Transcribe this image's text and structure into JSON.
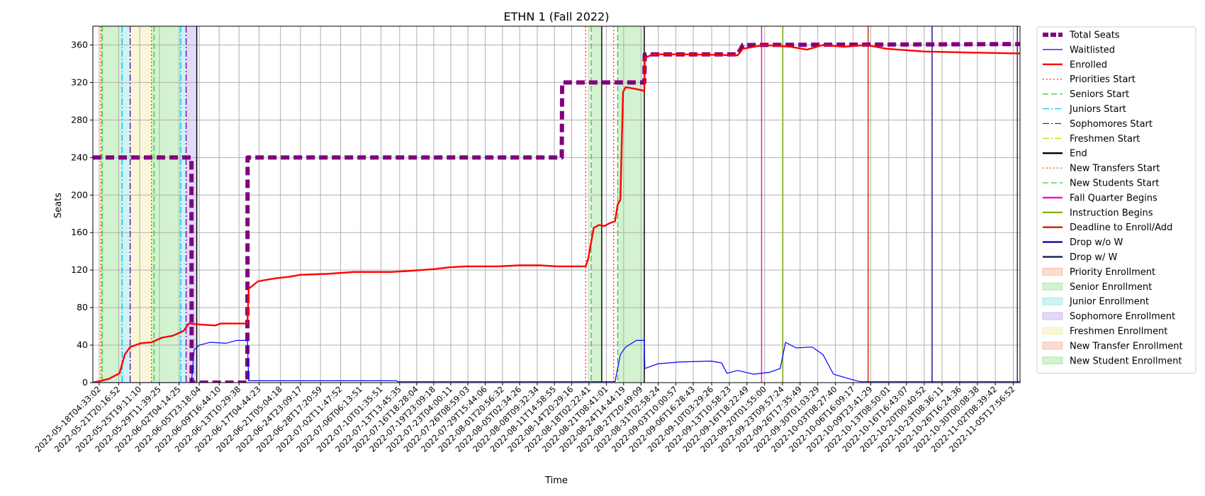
{
  "chart_data": {
    "type": "line",
    "title": "ETHN 1 (Fall 2022)",
    "xlabel": "Time",
    "ylabel": "Seats",
    "x_range": [
      "2022-05-17T00:00:00",
      "2022-11-07T00:00:00"
    ],
    "ylim": [
      0,
      380
    ],
    "grid": true,
    "legend_position": "outside-right",
    "y_ticks": [
      0,
      40,
      80,
      120,
      160,
      200,
      240,
      280,
      320,
      360
    ],
    "x_tick_labels": [
      "2022-05-18T04:33:02",
      "2022-05-21T20:16:52",
      "2022-05-25T19:11:10",
      "2022-05-29T11:39:25",
      "2022-06-02T04:14:25",
      "2022-06-05T23:18:04",
      "2022-06-09T16:44:10",
      "2022-06-13T10:29:38",
      "2022-06-17T04:44:23",
      "2022-06-21T05:04:18",
      "2022-06-24T23:09:17",
      "2022-06-28T17:20:59",
      "2022-07-02T11:47:52",
      "2022-07-06T06:13:51",
      "2022-07-10T01:35:51",
      "2022-07-13T13:45:35",
      "2022-07-16T18:28:04",
      "2022-07-19T23:09:18",
      "2022-07-23T04:00:11",
      "2022-07-26T08:59:03",
      "2022-07-29T15:44:06",
      "2022-08-01T20:56:32",
      "2022-08-05T02:34:26",
      "2022-08-08T09:32:34",
      "2022-08-11T14:58:55",
      "2022-08-14T20:29:16",
      "2022-08-18T02:22:41",
      "2022-08-21T08:41:01",
      "2022-08-24T14:44:19",
      "2022-08-27T20:49:09",
      "2022-08-31T02:58:24",
      "2022-09-03T10:00:57",
      "2022-09-06T16:28:43",
      "2022-09-10T03:29:26",
      "2022-09-13T10:58:23",
      "2022-09-16T18:22:49",
      "2022-09-20T01:55:00",
      "2022-09-23T09:57:24",
      "2022-09-26T17:35:49",
      "2022-09-30T01:03:29",
      "2022-10-03T08:27:40",
      "2022-10-06T16:09:17",
      "2022-10-09T23:41:29",
      "2022-10-13T08:50:01",
      "2022-10-16T16:43:07",
      "2022-10-20T00:40:52",
      "2022-10-23T08:36:11",
      "2022-10-26T16:24:36",
      "2022-10-30T00:08:38",
      "2022-11-02T08:39:42",
      "2022-11-05T17:56:52"
    ],
    "series": [
      {
        "name": "Total Seats",
        "color": "#800080",
        "style": "dashed-thick",
        "points": [
          [
            "2022-05-17T00:00:00",
            240
          ],
          [
            "2022-06-04T12:00:00",
            240
          ],
          [
            "2022-06-04T13:00:00",
            0
          ],
          [
            "2022-06-15T00:00:00",
            0
          ],
          [
            "2022-06-15T01:00:00",
            240
          ],
          [
            "2022-08-13T00:00:00",
            240
          ],
          [
            "2022-08-13T02:00:00",
            320
          ],
          [
            "2022-08-28T12:00:00",
            320
          ],
          [
            "2022-08-28T14:00:00",
            350
          ],
          [
            "2022-09-15T00:00:00",
            350
          ],
          [
            "2022-09-16T00:00:00",
            360
          ],
          [
            "2022-11-07T00:00:00",
            361
          ]
        ]
      },
      {
        "name": "Waitlisted",
        "color": "#0000ff",
        "style": "solid-thin",
        "points": [
          [
            "2022-05-17T00:00:00",
            0
          ],
          [
            "2022-06-04T12:00:00",
            0
          ],
          [
            "2022-06-05T00:00:00",
            35
          ],
          [
            "2022-06-06T00:00:00",
            40
          ],
          [
            "2022-06-08T00:00:00",
            43
          ],
          [
            "2022-06-11T00:00:00",
            42
          ],
          [
            "2022-06-13T00:00:00",
            45
          ],
          [
            "2022-06-15T00:00:00",
            45
          ],
          [
            "2022-06-15T06:00:00",
            2
          ],
          [
            "2022-07-13T00:00:00",
            2
          ],
          [
            "2022-07-13T06:00:00",
            1
          ],
          [
            "2022-08-23T00:00:00",
            1
          ],
          [
            "2022-08-24T00:00:00",
            30
          ],
          [
            "2022-08-25T00:00:00",
            38
          ],
          [
            "2022-08-27T00:00:00",
            45
          ],
          [
            "2022-08-28T12:00:00",
            45
          ],
          [
            "2022-08-28T14:00:00",
            15
          ],
          [
            "2022-08-31T00:00:00",
            20
          ],
          [
            "2022-09-04T00:00:00",
            22
          ],
          [
            "2022-09-10T00:00:00",
            23
          ],
          [
            "2022-09-12T00:00:00",
            21
          ],
          [
            "2022-09-13T00:00:00",
            10
          ],
          [
            "2022-09-15T00:00:00",
            13
          ],
          [
            "2022-09-18T00:00:00",
            9
          ],
          [
            "2022-09-21T00:00:00",
            11
          ],
          [
            "2022-09-23T00:00:00",
            15
          ],
          [
            "2022-09-24T00:00:00",
            43
          ],
          [
            "2022-09-26T00:00:00",
            37
          ],
          [
            "2022-09-29T00:00:00",
            38
          ],
          [
            "2022-10-01T00:00:00",
            30
          ],
          [
            "2022-10-03T00:00:00",
            9
          ],
          [
            "2022-10-06T00:00:00",
            4
          ],
          [
            "2022-10-08T00:00:00",
            1
          ],
          [
            "2022-11-07T00:00:00",
            1
          ]
        ]
      },
      {
        "name": "Enrolled",
        "color": "#ff0000",
        "style": "solid",
        "points": [
          [
            "2022-05-17T00:00:00",
            0
          ],
          [
            "2022-05-18T12:00:00",
            2
          ],
          [
            "2022-05-20T00:00:00",
            4
          ],
          [
            "2022-05-22T00:00:00",
            10
          ],
          [
            "2022-05-23T00:00:00",
            30
          ],
          [
            "2022-05-24T00:00:00",
            38
          ],
          [
            "2022-05-26T00:00:00",
            42
          ],
          [
            "2022-05-28T00:00:00",
            43
          ],
          [
            "2022-05-30T00:00:00",
            48
          ],
          [
            "2022-06-01T00:00:00",
            50
          ],
          [
            "2022-06-03T00:00:00",
            55
          ],
          [
            "2022-06-04T00:00:00",
            63
          ],
          [
            "2022-06-06T00:00:00",
            62
          ],
          [
            "2022-06-09T00:00:00",
            61
          ],
          [
            "2022-06-10T00:00:00",
            63
          ],
          [
            "2022-06-15T00:00:00",
            63
          ],
          [
            "2022-06-15T06:00:00",
            100
          ],
          [
            "2022-06-17T00:00:00",
            108
          ],
          [
            "2022-06-20T00:00:00",
            111
          ],
          [
            "2022-06-23T00:00:00",
            113
          ],
          [
            "2022-06-25T00:00:00",
            115
          ],
          [
            "2022-06-30T00:00:00",
            116
          ],
          [
            "2022-07-05T00:00:00",
            118
          ],
          [
            "2022-07-12T00:00:00",
            118
          ],
          [
            "2022-07-15T00:00:00",
            119
          ],
          [
            "2022-07-20T00:00:00",
            121
          ],
          [
            "2022-07-23T00:00:00",
            123
          ],
          [
            "2022-07-26T00:00:00",
            124
          ],
          [
            "2022-08-01T00:00:00",
            124
          ],
          [
            "2022-08-05T00:00:00",
            125
          ],
          [
            "2022-08-09T00:00:00",
            125
          ],
          [
            "2022-08-12T00:00:00",
            124
          ],
          [
            "2022-08-17T12:00:00",
            124
          ],
          [
            "2022-08-18T00:00:00",
            133
          ],
          [
            "2022-08-19T00:00:00",
            165
          ],
          [
            "2022-08-20T00:00:00",
            168
          ],
          [
            "2022-08-21T00:00:00",
            167
          ],
          [
            "2022-08-22T00:00:00",
            170
          ],
          [
            "2022-08-23T00:00:00",
            172
          ],
          [
            "2022-08-23T12:00:00",
            190
          ],
          [
            "2022-08-24T00:00:00",
            195
          ],
          [
            "2022-08-24T12:00:00",
            310
          ],
          [
            "2022-08-25T00:00:00",
            315
          ],
          [
            "2022-08-27T00:00:00",
            313
          ],
          [
            "2022-08-28T12:00:00",
            311
          ],
          [
            "2022-08-28T14:00:00",
            346
          ],
          [
            "2022-08-30T00:00:00",
            350
          ],
          [
            "2022-09-05T00:00:00",
            350
          ],
          [
            "2022-09-15T00:00:00",
            349
          ],
          [
            "2022-09-16T00:00:00",
            356
          ],
          [
            "2022-09-20T00:00:00",
            360
          ],
          [
            "2022-09-25T00:00:00",
            358
          ],
          [
            "2022-09-28T00:00:00",
            355
          ],
          [
            "2022-10-01T00:00:00",
            360
          ],
          [
            "2022-10-05T00:00:00",
            358
          ],
          [
            "2022-10-09T00:00:00",
            360
          ],
          [
            "2022-10-13T00:00:00",
            356
          ],
          [
            "2022-10-20T00:00:00",
            353
          ],
          [
            "2022-10-28T00:00:00",
            352
          ],
          [
            "2022-11-07T00:00:00",
            351
          ]
        ]
      }
    ],
    "event_lines": [
      {
        "name": "Priorities Start",
        "color": "#ff4500",
        "style": "dotted",
        "dates": [
          "2022-05-18T12:00:00",
          "2022-08-17T12:00:00"
        ]
      },
      {
        "name": "Seniors Start",
        "color": "#32cd32",
        "style": "dashed",
        "dates": [
          "2022-05-18T18:00:00",
          "2022-08-18T12:00:00"
        ]
      },
      {
        "name": "Juniors Start",
        "color": "#00bfff",
        "style": "dashdot",
        "dates": [
          "2022-05-22T12:00:00",
          "2022-06-02T12:00:00"
        ]
      },
      {
        "name": "Sophomores Start",
        "color": "#6a0dad",
        "style": "dashdot",
        "dates": [
          "2022-05-24T00:00:00",
          "2022-06-03T12:00:00"
        ]
      },
      {
        "name": "Freshmen Start",
        "color": "#d4d400",
        "style": "dashdot",
        "dates": []
      },
      {
        "name": "End",
        "color": "#000000",
        "style": "solid",
        "dates": [
          "2022-06-05T12:00:00",
          "2022-08-20T12:00:00",
          "2022-08-28T12:00:00"
        ]
      },
      {
        "name": "New Transfers Start",
        "color": "#ff4500",
        "style": "dotted",
        "dates": [
          "2022-05-28T00:00:00",
          "2022-08-22T18:00:00"
        ]
      },
      {
        "name": "New Students Start",
        "color": "#32cd32",
        "style": "dashed",
        "dates": [
          "2022-05-28T12:00:00",
          "2022-08-23T12:00:00"
        ]
      },
      {
        "name": "Fall Quarter Begins",
        "color": "#ff00c8",
        "style": "solid",
        "dates": [
          "2022-09-19T12:00:00"
        ]
      },
      {
        "name": "Instruction Begins",
        "color": "#7fb800",
        "style": "solid",
        "dates": [
          "2022-09-23T12:00:00"
        ]
      },
      {
        "name": "Deadline to Enroll/Add",
        "color": "#cc2200",
        "style": "solid",
        "dates": [
          "2022-10-09T12:00:00"
        ]
      },
      {
        "name": "Drop w/o W",
        "color": "#1a0099",
        "style": "solid",
        "dates": [
          "2022-10-21T12:00:00"
        ]
      },
      {
        "name": "Drop w/ W",
        "color": "#1a2855",
        "style": "solid",
        "dates": [
          "2022-11-06T12:00:00"
        ]
      }
    ],
    "shaded_regions": [
      {
        "name": "Priority Enrollment",
        "color": "#f5b7a0",
        "ranges": []
      },
      {
        "name": "Senior Enrollment",
        "color": "#a8e6a0",
        "ranges": [
          [
            "2022-05-18T12:00:00",
            "2022-05-22T12:00:00"
          ],
          [
            "2022-05-28T00:00:00",
            "2022-06-02T12:00:00"
          ],
          [
            "2022-08-18T12:00:00",
            "2022-08-20T12:00:00"
          ],
          [
            "2022-08-23T12:00:00",
            "2022-08-28T12:00:00"
          ]
        ]
      },
      {
        "name": "Junior Enrollment",
        "color": "#9fe6ec",
        "ranges": [
          [
            "2022-05-22T12:00:00",
            "2022-05-24T00:00:00"
          ],
          [
            "2022-06-02T12:00:00",
            "2022-06-03T12:00:00"
          ]
        ]
      },
      {
        "name": "Sophomore Enrollment",
        "color": "#c8b4ee",
        "ranges": [
          [
            "2022-06-03T12:00:00",
            "2022-06-05T12:00:00"
          ]
        ]
      },
      {
        "name": "Freshmen Enrollment",
        "color": "#f3f0b0",
        "ranges": [
          [
            "2022-05-24T00:00:00",
            "2022-05-28T00:00:00"
          ]
        ]
      },
      {
        "name": "New Transfer Enrollment",
        "color": "#f5b7a0",
        "ranges": []
      },
      {
        "name": "New Student Enrollment",
        "color": "#a8e6a0",
        "ranges": []
      }
    ],
    "legend": [
      {
        "label": "Total Seats",
        "kind": "line",
        "color": "#800080",
        "style": "dashed-thick"
      },
      {
        "label": "Waitlisted",
        "kind": "line",
        "color": "#0000ff",
        "style": "solid-thin"
      },
      {
        "label": "Enrolled",
        "kind": "line",
        "color": "#ff0000",
        "style": "solid"
      },
      {
        "label": "Priorities Start",
        "kind": "line",
        "color": "#ff4500",
        "style": "dotted"
      },
      {
        "label": "Seniors Start",
        "kind": "line",
        "color": "#32cd32",
        "style": "dashed"
      },
      {
        "label": "Juniors Start",
        "kind": "line",
        "color": "#00bfff",
        "style": "dashdot"
      },
      {
        "label": "Sophomores Start",
        "kind": "line",
        "color": "#6a0dad",
        "style": "dashdot"
      },
      {
        "label": "Freshmen Start",
        "kind": "line",
        "color": "#d4d400",
        "style": "dashdot"
      },
      {
        "label": "End",
        "kind": "line",
        "color": "#000000",
        "style": "solid"
      },
      {
        "label": "New Transfers Start",
        "kind": "line",
        "color": "#ff4500",
        "style": "dotted"
      },
      {
        "label": "New Students Start",
        "kind": "line",
        "color": "#32cd32",
        "style": "dashed"
      },
      {
        "label": "Fall Quarter Begins",
        "kind": "line",
        "color": "#ff00c8",
        "style": "solid"
      },
      {
        "label": "Instruction Begins",
        "kind": "line",
        "color": "#7fb800",
        "style": "solid"
      },
      {
        "label": "Deadline to Enroll/Add",
        "kind": "line",
        "color": "#cc2200",
        "style": "solid"
      },
      {
        "label": "Drop w/o W",
        "kind": "line",
        "color": "#1a0099",
        "style": "solid"
      },
      {
        "label": "Drop w/ W",
        "kind": "line",
        "color": "#1a2855",
        "style": "solid"
      },
      {
        "label": "Priority Enrollment",
        "kind": "patch",
        "color": "#f5b7a0"
      },
      {
        "label": "Senior Enrollment",
        "kind": "patch",
        "color": "#a8e6a0"
      },
      {
        "label": "Junior Enrollment",
        "kind": "patch",
        "color": "#9fe6ec"
      },
      {
        "label": "Sophomore Enrollment",
        "kind": "patch",
        "color": "#c8b4ee"
      },
      {
        "label": "Freshmen Enrollment",
        "kind": "patch",
        "color": "#f3f0b0"
      },
      {
        "label": "New Transfer Enrollment",
        "kind": "patch",
        "color": "#f5b7a0"
      },
      {
        "label": "New Student Enrollment",
        "kind": "patch",
        "color": "#a8e6a0"
      }
    ]
  }
}
